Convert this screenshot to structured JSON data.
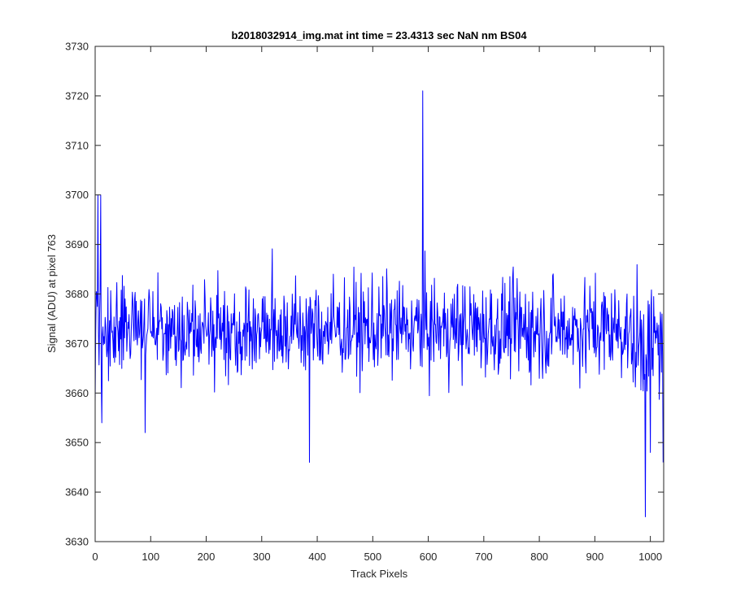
{
  "chart_data": {
    "type": "line",
    "title": "b2018032914_img.mat int time = 23.4313 sec  NaN nm BS04",
    "xlabel": "Track Pixels",
    "ylabel": "Signal (ADU) at pixel 763",
    "xlim": [
      0,
      1024
    ],
    "ylim": [
      3630,
      3730
    ],
    "xticks": [
      "0",
      "100",
      "200",
      "300",
      "400",
      "500",
      "600",
      "700",
      "800",
      "900",
      "1000"
    ],
    "yticks": [
      "3630",
      "3640",
      "3650",
      "3660",
      "3670",
      "3680",
      "3690",
      "3700",
      "3710",
      "3720",
      "3730"
    ],
    "grid": false,
    "legend": "none",
    "series": [
      {
        "color": "#0000ff",
        "description": "noisy trace, approx. 1024 samples",
        "mean": 3673,
        "noise_sigma": 6.5,
        "notable_points": [
          {
            "x": 0,
            "y": 3658
          },
          {
            "x": 5,
            "y": 3700
          },
          {
            "x": 10,
            "y": 3700
          },
          {
            "x": 12,
            "y": 3654
          },
          {
            "x": 90,
            "y": 3652
          },
          {
            "x": 386,
            "y": 3646
          },
          {
            "x": 590,
            "y": 3721
          },
          {
            "x": 991,
            "y": 3635
          },
          {
            "x": 1000,
            "y": 3648
          },
          {
            "x": 1023,
            "y": 3646
          }
        ]
      }
    ]
  }
}
